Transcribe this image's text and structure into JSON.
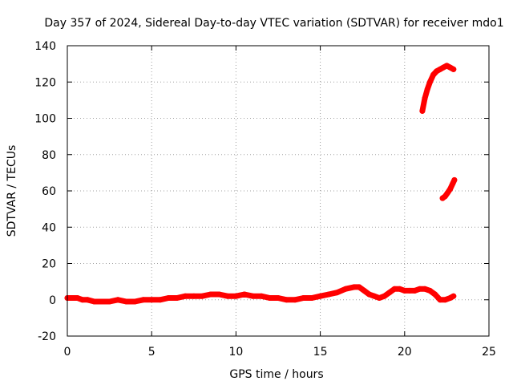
{
  "chart_data": {
    "type": "line",
    "title": "Day 357 of 2024, Sidereal Day-to-day VTEC variation (SDTVAR) for receiver mdo1",
    "xlabel": "GPS time / hours",
    "ylabel": "SDTVAR / TECUs",
    "xlim": [
      0,
      25
    ],
    "ylim": [
      -20,
      140
    ],
    "xticks": [
      0,
      5,
      10,
      15,
      20,
      25
    ],
    "yticks": [
      -20,
      0,
      20,
      40,
      60,
      80,
      100,
      120,
      140
    ],
    "xtick_labels": [
      "0",
      "5",
      "10",
      "15",
      "20",
      "25"
    ],
    "ytick_labels": [
      "-20",
      "0",
      "20",
      "40",
      "60",
      "80",
      "100",
      "120",
      "140"
    ],
    "grid": true,
    "series_color": "#ff0000",
    "series": [
      {
        "name": "SDTVAR main",
        "x": [
          0.0,
          0.3,
          0.6,
          0.9,
          1.2,
          1.6,
          2.0,
          2.5,
          3.0,
          3.5,
          4.0,
          4.5,
          5.0,
          5.5,
          6.0,
          6.5,
          7.0,
          7.5,
          8.0,
          8.5,
          9.0,
          9.5,
          10.0,
          10.5,
          11.0,
          11.5,
          12.0,
          12.5,
          13.0,
          13.5,
          14.0,
          14.5,
          15.0,
          15.5,
          16.0,
          16.5,
          17.0,
          17.3,
          17.6,
          17.9,
          18.2,
          18.5,
          18.8,
          19.1,
          19.4,
          19.7,
          20.0,
          20.3,
          20.6,
          20.9,
          21.2,
          21.5,
          21.8,
          22.1,
          22.4,
          22.7,
          22.9
        ],
        "values": [
          1,
          1,
          1,
          0,
          0,
          -1,
          -1,
          -1,
          0,
          -1,
          -1,
          0,
          0,
          0,
          1,
          1,
          2,
          2,
          2,
          3,
          3,
          2,
          2,
          3,
          2,
          2,
          1,
          1,
          0,
          0,
          1,
          1,
          2,
          3,
          4,
          6,
          7,
          7,
          5,
          3,
          2,
          1,
          2,
          4,
          6,
          6,
          5,
          5,
          5,
          6,
          6,
          5,
          3,
          0,
          0,
          1,
          2
        ]
      },
      {
        "name": "SDTVAR high branch",
        "x": [
          21.05,
          21.2,
          21.35,
          21.5,
          21.7,
          21.9,
          22.1,
          22.3,
          22.5,
          22.7,
          22.9
        ],
        "values": [
          104,
          111,
          116,
          120,
          124,
          126,
          127,
          128,
          129,
          128,
          127
        ]
      },
      {
        "name": "SDTVAR mid branch",
        "x": [
          22.25,
          22.4,
          22.55,
          22.7,
          22.85,
          22.95
        ],
        "values": [
          56,
          57,
          59,
          61,
          64,
          66
        ]
      }
    ]
  }
}
